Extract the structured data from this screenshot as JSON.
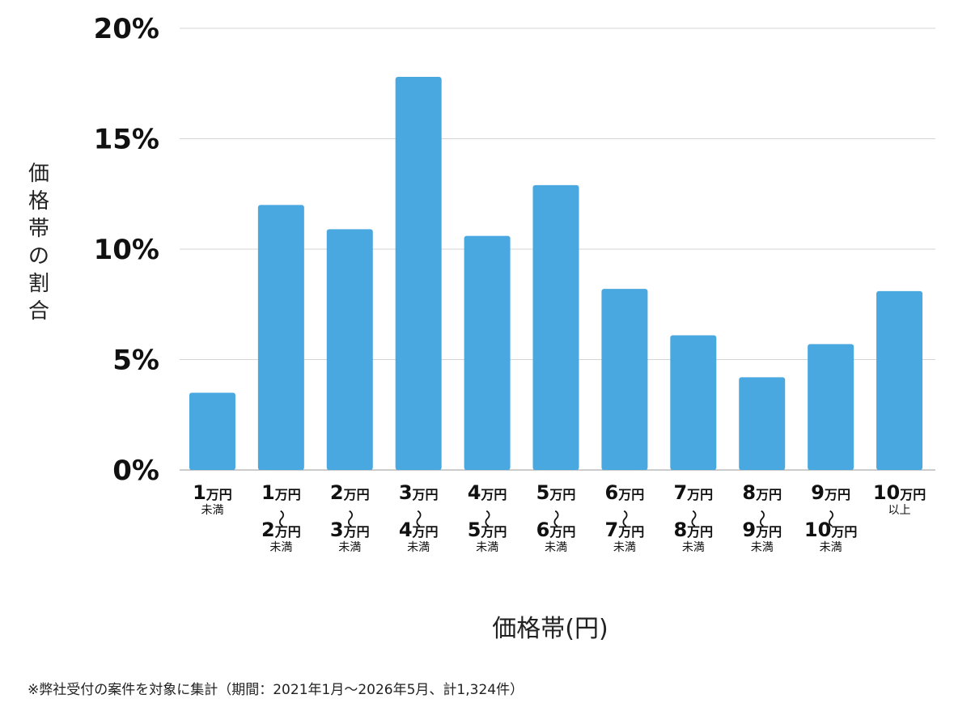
{
  "chart_data": {
    "type": "bar",
    "xlabel": "価格帯(円)",
    "ylabel": "価格帯の割合",
    "ylim": [
      0,
      20
    ],
    "yticks": [
      "0%",
      "5%",
      "10%",
      "15%",
      "20%"
    ],
    "grid": true,
    "bar_color": "#4aa8e0",
    "categories": [
      [
        "1万円",
        "未満"
      ],
      [
        "1万円",
        "〜",
        "2万円",
        "未満"
      ],
      [
        "2万円",
        "〜",
        "3万円",
        "未満"
      ],
      [
        "3万円",
        "〜",
        "4万円",
        "未満"
      ],
      [
        "4万円",
        "〜",
        "5万円",
        "未満"
      ],
      [
        "5万円",
        "〜",
        "6万円",
        "未満"
      ],
      [
        "6万円",
        "〜",
        "7万円",
        "未満"
      ],
      [
        "7万円",
        "〜",
        "8万円",
        "未満"
      ],
      [
        "8万円",
        "〜",
        "9万円",
        "未満"
      ],
      [
        "9万円",
        "〜",
        "10万円",
        "未満"
      ],
      [
        "10万円",
        "以上"
      ]
    ],
    "values": [
      3.5,
      12.0,
      10.9,
      17.8,
      10.6,
      12.9,
      8.2,
      6.1,
      4.2,
      5.7,
      8.1
    ]
  },
  "note": "※弊社受付の案件を対象に集計（期間：2021年1月〜2026年5月、計1,324件）"
}
